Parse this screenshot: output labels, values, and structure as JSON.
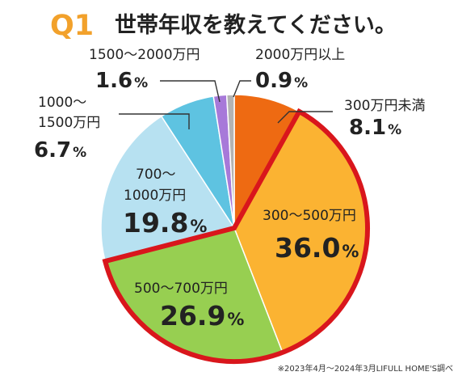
{
  "header": {
    "q_label": "Q1",
    "title": "世帯年収を教えてください。"
  },
  "footnote": "※2023年4月〜2024年3月LIFULL HOME'S調べ",
  "colors": {
    "highlight_border": "#d9161c",
    "label_line": "#333333"
  },
  "chart_data": {
    "type": "pie",
    "title": "世帯年収を教えてください。",
    "start": "12 o'clock, clockwise",
    "unit": "%",
    "slices": [
      {
        "label": "300万円未満",
        "value": 8.1,
        "color": "#ee6a12"
      },
      {
        "label": "300〜500万円",
        "value": 36.0,
        "color": "#fbb332"
      },
      {
        "label": "500〜700万円",
        "value": 26.9,
        "color": "#97cf51"
      },
      {
        "label": "700〜1000万円",
        "value": 19.8,
        "color": "#b7e1f1"
      },
      {
        "label": "1000〜1500万円",
        "value": 6.7,
        "color": "#5ec3e1"
      },
      {
        "label": "1500〜2000万円",
        "value": 1.6,
        "color": "#a779d9"
      },
      {
        "label": "2000万円以上",
        "value": 0.9,
        "color": "#b3b3b3"
      }
    ],
    "highlighted_slices": [
      "300〜500万円",
      "500〜700万円"
    ]
  }
}
